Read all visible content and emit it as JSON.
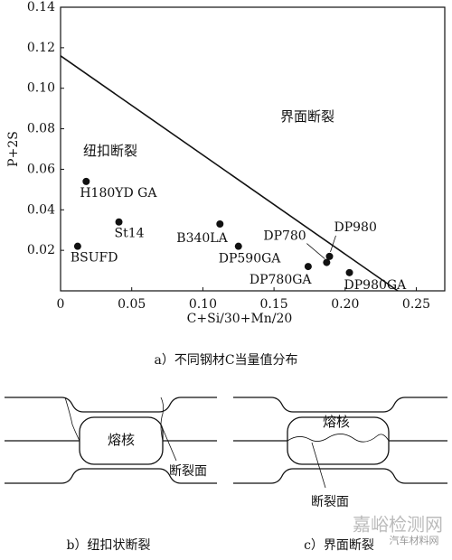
{
  "chart_data": {
    "type": "scatter",
    "xlabel": "C+Si/30+Mn/20",
    "ylabel": "P+2S",
    "labels": [
      "BSUFD",
      "H180YD GA",
      "St14",
      "B340LA",
      "DP590GA",
      "DP780GA",
      "DP780",
      "DP980",
      "DP980GA"
    ],
    "x": [
      0.012,
      0.018,
      0.041,
      0.112,
      0.125,
      0.174,
      0.187,
      0.189,
      0.203
    ],
    "values": [
      0.022,
      0.054,
      0.034,
      0.033,
      0.022,
      0.012,
      0.014,
      0.017,
      0.009
    ],
    "color": "#111111",
    "boundary": {
      "x": [
        0,
        0.237
      ],
      "y": [
        0.116,
        0
      ]
    },
    "annotations": [
      "界面断裂",
      "纽扣断裂"
    ],
    "xlim": [
      0,
      0.27
    ],
    "ylim": [
      0,
      0.14
    ],
    "xticks": [
      0,
      0.05,
      {
        "value": 0.1,
        "label": "0.10"
      },
      0.15,
      {
        "value": 0.2,
        "label": "0.20"
      },
      0.25
    ],
    "yticks": [
      0.02,
      0.04,
      0.06,
      0.08,
      {
        "value": 0.1,
        "label": "0.10"
      },
      0.12,
      0.14
    ]
  },
  "caption_a": "a）不同钢材C当量值分布",
  "diagrams": [
    {
      "nucleus": "熔核",
      "fracture": "断裂面",
      "caption": "b）纽扣状断裂"
    },
    {
      "nucleus": "熔核",
      "fracture": "断裂面",
      "caption": "c）界面断裂"
    }
  ],
  "watermark": [
    "嘉峪检测网",
    "汽车材料网"
  ]
}
